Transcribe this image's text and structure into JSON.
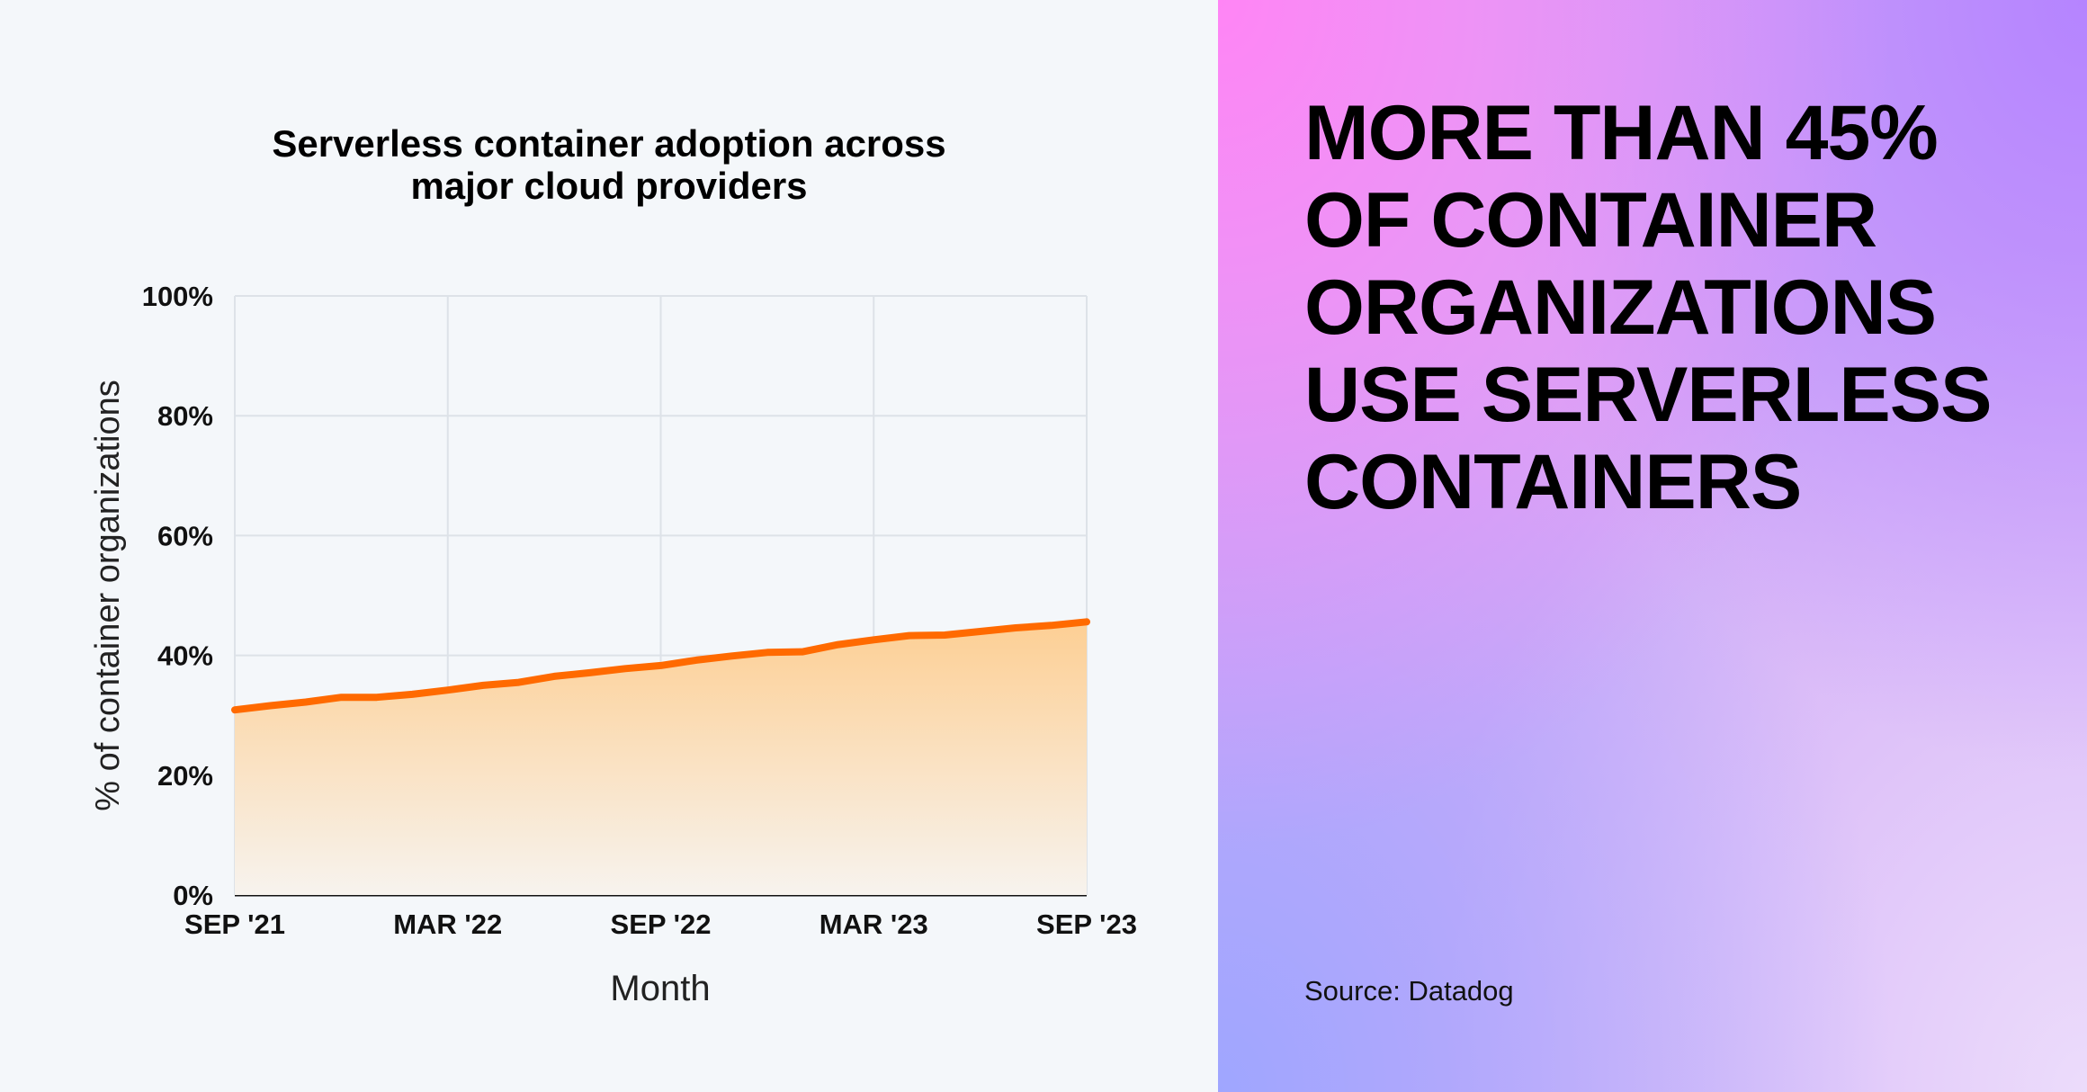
{
  "chart_data": {
    "type": "area",
    "title": "Serverless container adoption across major cloud providers",
    "title_lines": [
      "Serverless container adoption across",
      "major cloud providers"
    ],
    "xlabel": "Month",
    "ylabel": "% of container organizations",
    "x_tick_labels": [
      "SEP '21",
      "MAR '22",
      "SEP '22",
      "MAR '23",
      "SEP '23"
    ],
    "y_tick_labels": [
      "0%",
      "20%",
      "40%",
      "60%",
      "80%",
      "100%"
    ],
    "ylim": [
      0,
      100
    ],
    "grid": true,
    "line_color": "#ff6a00",
    "fill_color": "#fdcf94",
    "x": [
      "2021-09",
      "2021-10",
      "2021-11",
      "2021-12",
      "2022-01",
      "2022-02",
      "2022-03",
      "2022-04",
      "2022-05",
      "2022-06",
      "2022-07",
      "2022-08",
      "2022-09",
      "2022-10",
      "2022-11",
      "2022-12",
      "2023-01",
      "2023-02",
      "2023-03",
      "2023-04",
      "2023-05",
      "2023-06",
      "2023-07",
      "2023-08",
      "2023-09"
    ],
    "values": [
      30.9,
      31.6,
      32.2,
      33.0,
      33.0,
      33.5,
      34.2,
      35.0,
      35.5,
      36.5,
      37.1,
      37.8,
      38.3,
      39.2,
      39.9,
      40.5,
      40.6,
      41.8,
      42.6,
      43.3,
      43.4,
      44.0,
      44.6,
      45.0,
      45.6
    ]
  },
  "headline_lines": [
    "MORE THAN 45%",
    "OF CONTAINER",
    "ORGANIZATIONS",
    "USE SERVERLESS",
    "CONTAINERS"
  ],
  "source": "Source: Datadog"
}
